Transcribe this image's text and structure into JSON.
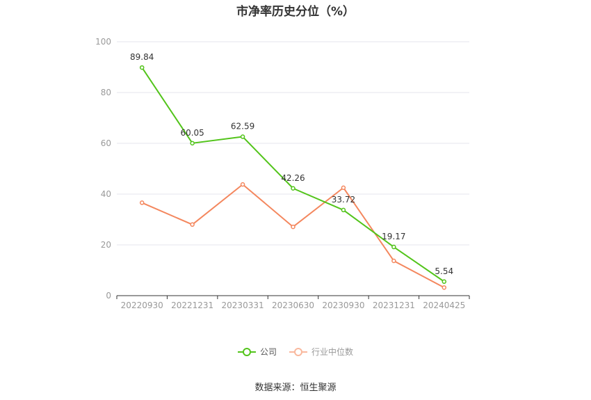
{
  "chart_data": {
    "type": "line",
    "title": "市净率历史分位（%）",
    "categories": [
      "20220930",
      "20221231",
      "20230331",
      "20230630",
      "20230930",
      "20231231",
      "20240425"
    ],
    "ylim": [
      0,
      100
    ],
    "yticks": [
      0,
      20,
      40,
      60,
      80,
      100
    ],
    "grid": true,
    "legend_position": "bottom",
    "series": [
      {
        "name": "公司",
        "color": "#52c41a",
        "values": [
          89.84,
          60.05,
          62.59,
          42.26,
          33.72,
          19.17,
          5.54
        ],
        "labels": [
          "89.84",
          "60.05",
          "62.59",
          "42.26",
          "33.72",
          "19.17",
          "5.54"
        ]
      },
      {
        "name": "行业中位数",
        "color": "#f4875e",
        "values": [
          36.6,
          28.0,
          43.8,
          27.1,
          42.5,
          13.7,
          3.2
        ]
      }
    ]
  },
  "source": "数据来源：恒生聚源"
}
